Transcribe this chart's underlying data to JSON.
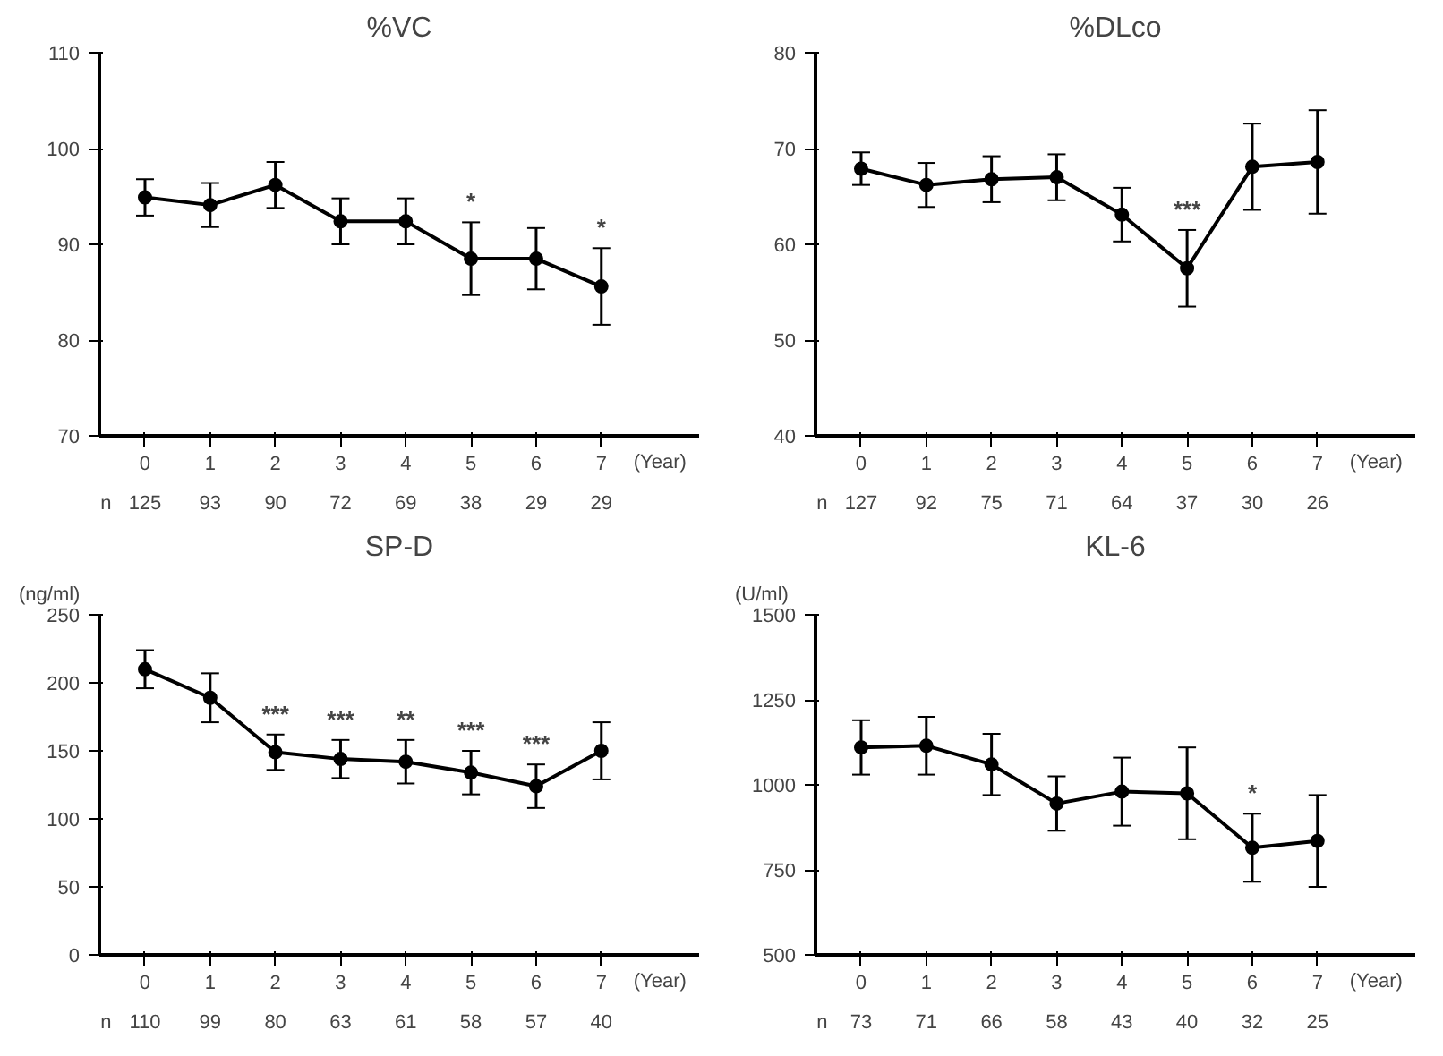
{
  "chart_data": [
    {
      "type": "line",
      "title": "%VC",
      "xlabel": "(Year)",
      "categories": [
        "0",
        "1",
        "2",
        "3",
        "4",
        "5",
        "6",
        "7"
      ],
      "values": [
        94.9,
        94.1,
        96.2,
        92.4,
        92.4,
        88.5,
        88.5,
        85.6
      ],
      "errors": [
        1.9,
        2.3,
        2.4,
        2.4,
        2.4,
        3.8,
        3.2,
        4.0
      ],
      "color": "#000000",
      "marker": "circle",
      "grid": false,
      "ylim": [
        70,
        110
      ],
      "yticks": [
        70,
        80,
        90,
        100,
        110
      ],
      "annotations": [
        "n",
        "125",
        "93",
        "90",
        "72",
        "69",
        "38",
        "29",
        "29",
        {
          "text": "*",
          "x": "5",
          "y": 88.5
        },
        {
          "text": "*",
          "x": "7",
          "y": 85.6
        }
      ]
    },
    {
      "type": "line",
      "title": "%DLco",
      "xlabel": "(Year)",
      "categories": [
        "0",
        "1",
        "2",
        "3",
        "4",
        "5",
        "6",
        "7"
      ],
      "values": [
        67.9,
        66.2,
        66.8,
        67.0,
        63.1,
        57.5,
        68.1,
        68.6
      ],
      "errors": [
        1.7,
        2.3,
        2.4,
        2.4,
        2.8,
        4.0,
        4.5,
        5.4
      ],
      "color": "#000000",
      "marker": "circle",
      "grid": false,
      "ylim": [
        40,
        80
      ],
      "yticks": [
        40,
        50,
        60,
        70,
        80
      ],
      "annotations": [
        "n",
        "127",
        "92",
        "75",
        "71",
        "64",
        "37",
        "30",
        "26",
        {
          "text": "***",
          "x": "5",
          "y": 57.5
        }
      ]
    },
    {
      "type": "line",
      "title": "SP-D",
      "ylabel": "(ng/ml)",
      "xlabel": "(Year)",
      "categories": [
        "0",
        "1",
        "2",
        "3",
        "4",
        "5",
        "6",
        "7"
      ],
      "values": [
        210,
        189,
        149,
        144,
        142,
        134,
        124,
        150
      ],
      "errors": [
        14,
        18,
        13,
        14,
        16,
        16,
        16,
        21
      ],
      "color": "#000000",
      "marker": "circle",
      "grid": false,
      "ylim": [
        0,
        250
      ],
      "yticks": [
        0,
        50,
        100,
        150,
        200,
        250
      ],
      "annotations": [
        "n",
        "110",
        "99",
        "80",
        "63",
        "61",
        "58",
        "57",
        "40",
        {
          "text": "***",
          "x": "2",
          "y": 149
        },
        {
          "text": "***",
          "x": "3",
          "y": 144
        },
        {
          "text": "**",
          "x": "4",
          "y": 142
        },
        {
          "text": "***",
          "x": "5",
          "y": 134
        },
        {
          "text": "***",
          "x": "6",
          "y": 124
        }
      ]
    },
    {
      "type": "line",
      "title": "KL-6",
      "ylabel": "(U/ml)",
      "xlabel": "(Year)",
      "categories": [
        "0",
        "1",
        "2",
        "3",
        "4",
        "5",
        "6",
        "7"
      ],
      "values": [
        1110,
        1115,
        1060,
        945,
        980,
        975,
        815,
        835
      ],
      "errors": [
        80,
        85,
        90,
        80,
        100,
        135,
        100,
        135
      ],
      "color": "#000000",
      "marker": "circle",
      "grid": false,
      "ylim": [
        500,
        1500
      ],
      "yticks": [
        500,
        750,
        1000,
        1250,
        1500
      ],
      "annotations": [
        "n",
        "73",
        "71",
        "66",
        "58",
        "43",
        "40",
        "32",
        "25",
        {
          "text": "*",
          "x": "6",
          "y": 815
        }
      ]
    }
  ]
}
